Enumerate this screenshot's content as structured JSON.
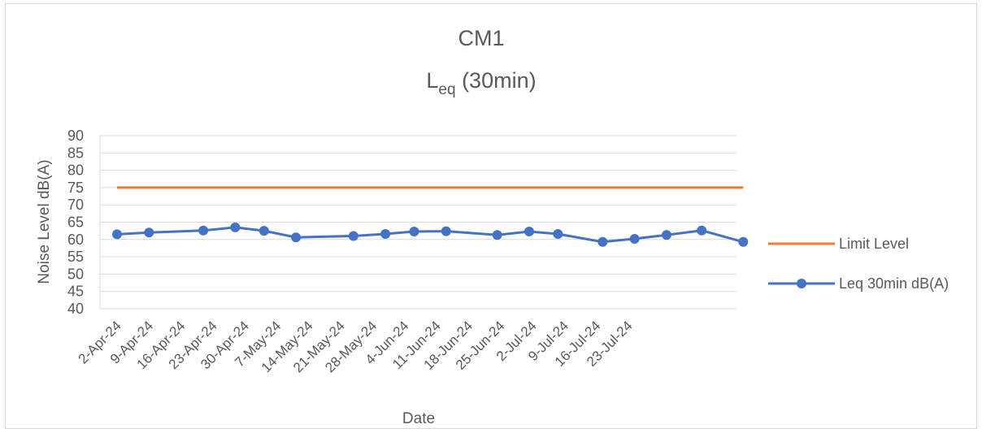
{
  "chart_data": {
    "type": "line",
    "title": "CM1",
    "subtitle_main": "L",
    "subtitle_sub": "eq",
    "subtitle_rest": " (30min)",
    "xlabel": "Date",
    "ylabel": "Noise Level dB(A)",
    "ylim": [
      40,
      90
    ],
    "y_ticks": [
      "40",
      "45",
      "50",
      "55",
      "60",
      "65",
      "70",
      "75",
      "80",
      "85",
      "90"
    ],
    "categories": [
      "2-Apr-24",
      "9-Apr-24",
      "16-Apr-24",
      "23-Apr-24",
      "30-Apr-24",
      "7-May-24",
      "14-May-24",
      "21-May-24",
      "28-May-24",
      "4-Jun-24",
      "11-Jun-24",
      "18-Jun-24",
      "25-Jun-24",
      "2-Jul-24",
      "9-Jul-24",
      "16-Jul-24",
      "23-Jul-24"
    ],
    "grid": true,
    "legend_position": "right",
    "series": [
      {
        "name": "Limit Level",
        "color": "#ED7D31",
        "marker": false,
        "points": [
          [
            0,
            75
          ],
          [
            19.6,
            75
          ]
        ]
      },
      {
        "name": "Leq 30min dB(A)",
        "color": "#4472C4",
        "marker": true,
        "points": [
          [
            0,
            61.5
          ],
          [
            1,
            62.0
          ],
          [
            2.7,
            62.6
          ],
          [
            3.7,
            63.5
          ],
          [
            4.6,
            62.5
          ],
          [
            5.6,
            60.6
          ],
          [
            7.4,
            61.0
          ],
          [
            8.4,
            61.6
          ],
          [
            9.3,
            62.3
          ],
          [
            10.3,
            62.4
          ],
          [
            11.9,
            61.3
          ],
          [
            12.9,
            62.3
          ],
          [
            13.8,
            61.6
          ],
          [
            15.2,
            59.3
          ],
          [
            16.2,
            60.2
          ],
          [
            17.2,
            61.3
          ],
          [
            18.3,
            62.6
          ],
          [
            19.6,
            59.3
          ]
        ]
      }
    ]
  }
}
